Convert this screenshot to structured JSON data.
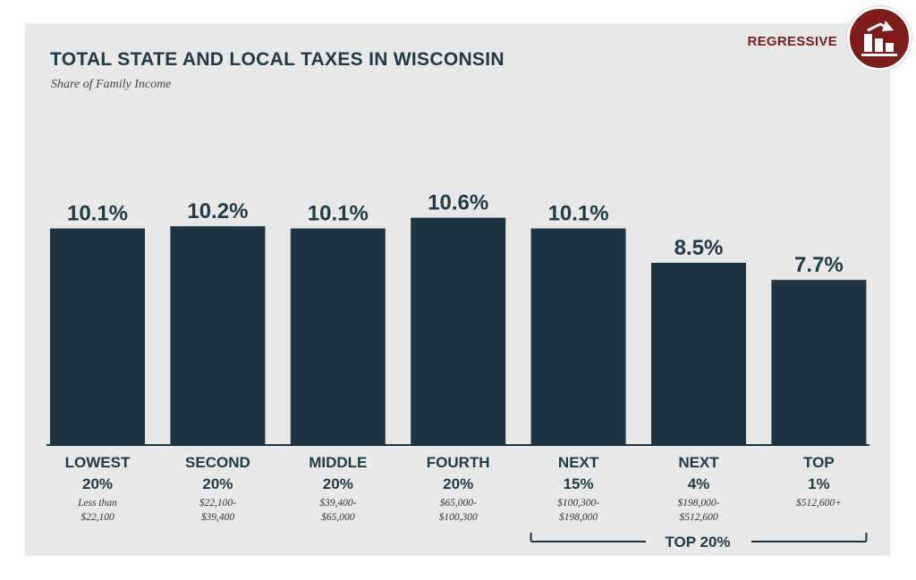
{
  "header": {
    "title": "TOTAL STATE AND LOCAL TAXES IN WISCONSIN",
    "subtitle": "Share of Family Income",
    "badge_label": "REGRESSIVE",
    "badge_icon": "regressive-bar-chart-icon"
  },
  "colors": {
    "bar": "#1c3443",
    "text": "#1f3a48",
    "accent": "#7e1c1c",
    "panel": "#e8e8e8"
  },
  "chart_data": {
    "type": "bar",
    "title": "TOTAL STATE AND LOCAL TAXES IN WISCONSIN",
    "subtitle": "Share of Family Income",
    "xlabel": "",
    "ylabel": "",
    "ylim": [
      0,
      12
    ],
    "grid": false,
    "categories": [
      "LOWEST 20%",
      "SECOND 20%",
      "MIDDLE 20%",
      "FOURTH 20%",
      "NEXT 15%",
      "NEXT 4%",
      "TOP 1%"
    ],
    "category_lines": [
      [
        "LOWEST",
        "20%"
      ],
      [
        "SECOND",
        "20%"
      ],
      [
        "MIDDLE",
        "20%"
      ],
      [
        "FOURTH",
        "20%"
      ],
      [
        "NEXT",
        "15%"
      ],
      [
        "NEXT",
        "4%"
      ],
      [
        "TOP",
        "1%"
      ]
    ],
    "income_ranges": [
      [
        "Less than",
        "$22,100"
      ],
      [
        "$22,100-",
        "$39,400"
      ],
      [
        "$39,400-",
        "$65,000"
      ],
      [
        "$65,000-",
        "$100,300"
      ],
      [
        "$100,300-",
        "$198,000"
      ],
      [
        "$198,000-",
        "$512,600"
      ],
      [
        "$512,600+"
      ]
    ],
    "values": [
      10.1,
      10.2,
      10.1,
      10.6,
      10.1,
      8.5,
      7.7
    ],
    "value_labels": [
      "10.1%",
      "10.2%",
      "10.1%",
      "10.6%",
      "10.1%",
      "8.5%",
      "7.7%"
    ],
    "group_bracket": {
      "label": "TOP 20%",
      "from_category": 4,
      "to_category": 6
    }
  }
}
